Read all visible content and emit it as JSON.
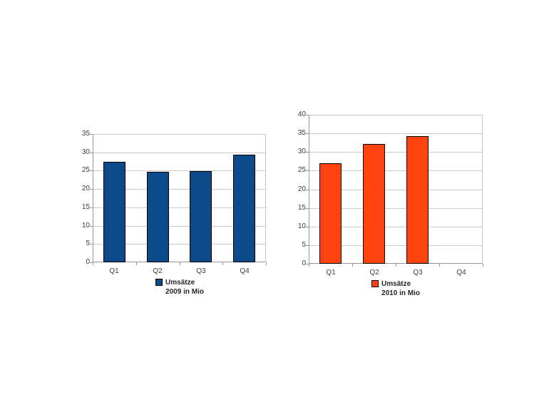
{
  "page": {
    "background_color": "#ffffff"
  },
  "colors": {
    "axis_line": "#969696",
    "gridline": "#c9c9c9",
    "tick_label_text": "#3d3d3d",
    "legend_text": "#262626"
  },
  "chart_data": [
    {
      "type": "bar",
      "categories": [
        "Q1",
        "Q2",
        "Q3",
        "Q4"
      ],
      "values": [
        27.5,
        24.7,
        24.9,
        29.3
      ],
      "legend_lines": [
        "Umsätze",
        "2009 in Mio"
      ],
      "legend_position": "bottom",
      "ylim": [
        0,
        35
      ],
      "yticks": [
        0,
        5,
        10,
        15,
        20,
        25,
        30,
        35
      ],
      "grid": true,
      "bar_color": "#0D4A8B",
      "bar_border_color": "#000000"
    },
    {
      "type": "bar",
      "categories": [
        "Q1",
        "Q2",
        "Q3",
        "Q4"
      ],
      "values": [
        27.0,
        32.2,
        34.3,
        0
      ],
      "legend_lines": [
        "Umsätze",
        "2010 in Mio"
      ],
      "legend_position": "bottom",
      "ylim": [
        0,
        40
      ],
      "yticks": [
        0,
        5,
        10,
        15,
        20,
        25,
        30,
        35,
        40
      ],
      "grid": true,
      "bar_color": "#FF420E",
      "bar_border_color": "#000000"
    }
  ]
}
